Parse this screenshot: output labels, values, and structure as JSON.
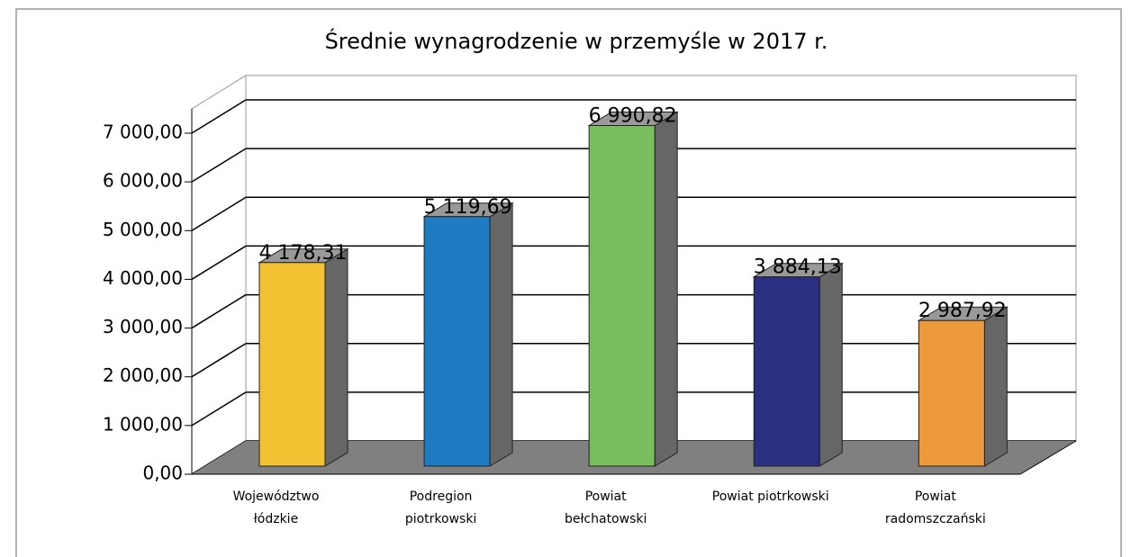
{
  "chart_data": {
    "type": "bar3d",
    "title": "Średnie wynagrodzenie w przemyśle w 2017 r.",
    "categories": [
      "Województwo\nłódzkie",
      "Podregion\npiotrkowski",
      "Powiat\nbełchatowski",
      "Powiat piotrkowski",
      "Powiat\nradomszczański"
    ],
    "values": [
      4178.31,
      5119.69,
      6990.82,
      3884.13,
      2987.92
    ],
    "value_labels": [
      "4 178,31",
      "5 119,69",
      "6 990,82",
      "3 884,13",
      "2 987,92"
    ],
    "colors": [
      "#f2c232",
      "#1f7bc1",
      "#79bd5c",
      "#2b2f80",
      "#ec9a3c"
    ],
    "ylim": [
      0,
      7500
    ],
    "yticks": [
      {
        "value": 0,
        "label": "0,00"
      },
      {
        "value": 1000,
        "label": "1 000,00"
      },
      {
        "value": 2000,
        "label": "2 000,00"
      },
      {
        "value": 3000,
        "label": "3 000,00"
      },
      {
        "value": 4000,
        "label": "4 000,00"
      },
      {
        "value": 5000,
        "label": "5 000,00"
      },
      {
        "value": 6000,
        "label": "6 000,00"
      },
      {
        "value": 7000,
        "label": "7 000,00"
      }
    ],
    "grid": true
  }
}
